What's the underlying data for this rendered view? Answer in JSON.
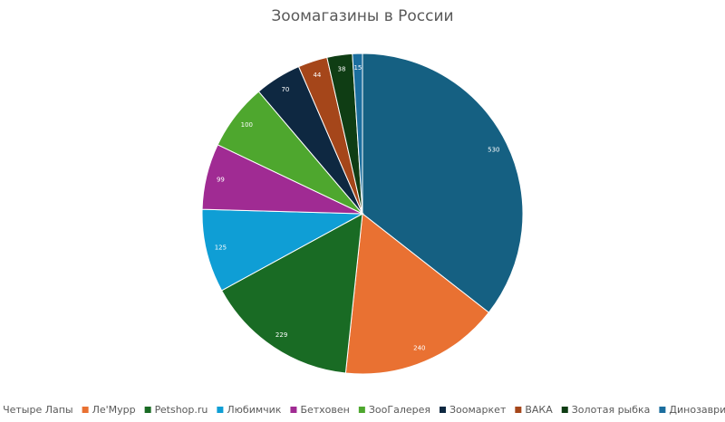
{
  "chart_data": {
    "type": "pie",
    "title": "Зоомагазины в России",
    "categories": [
      "Четыре Лапы",
      "Ле'Мурр",
      "Petshop.ru",
      "Любимчик",
      "Бетховен",
      "ЗооГалерея",
      "Зоомаркет",
      "ВАКА",
      "Золотая рыбка",
      "Динозаврик"
    ],
    "values": [
      530,
      240,
      229,
      125,
      99,
      100,
      70,
      44,
      38,
      15
    ],
    "colors": [
      "#156082",
      "#e97132",
      "#196b24",
      "#0f9ed5",
      "#a02b93",
      "#4ea72e",
      "#0e2841",
      "#a5461a",
      "#0f3d14",
      "#1b6e9e"
    ],
    "legend": "bottom"
  }
}
